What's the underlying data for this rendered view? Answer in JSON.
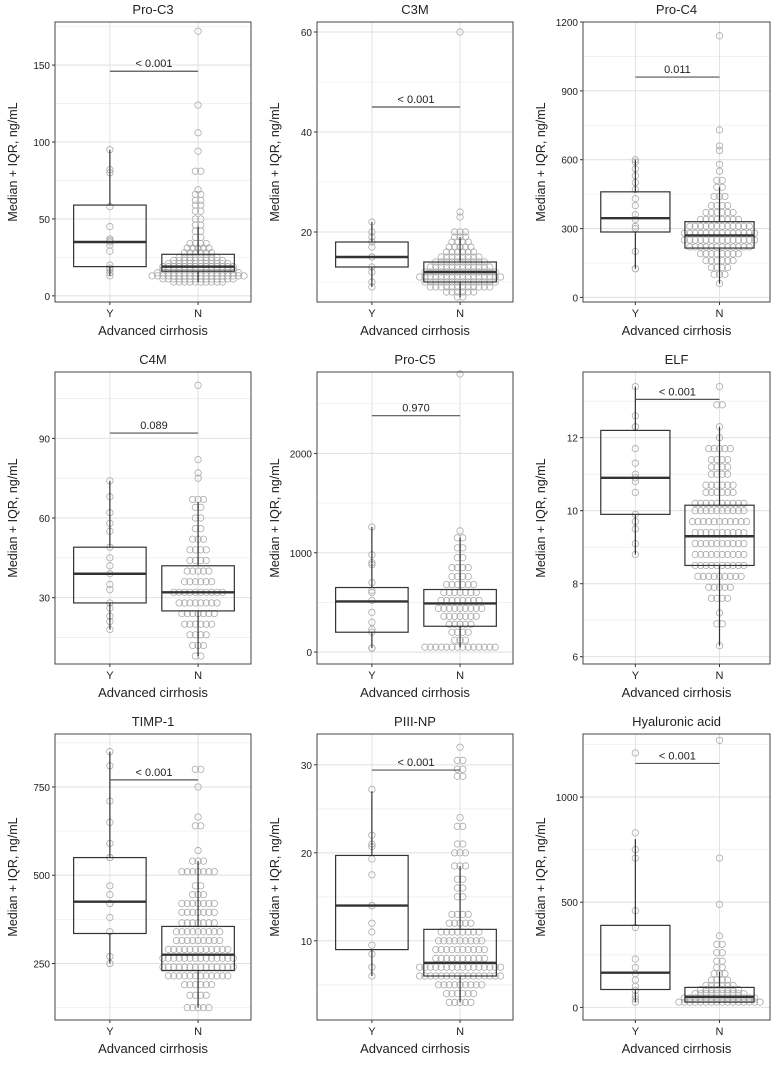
{
  "chart_data": [
    {
      "type": "box",
      "title": "Pro-C3",
      "ylabel": "Median + IQR, ng/mL",
      "xlabel": "Advanced cirrhosis",
      "categories": [
        "Y",
        "N"
      ],
      "ylim": [
        -4,
        178
      ],
      "yticks": [
        0,
        50,
        100,
        150
      ],
      "grid": true,
      "boxes": [
        {
          "group": "Y",
          "min": 13,
          "q1": 19,
          "median": 35,
          "q3": 59,
          "max": 95
        },
        {
          "group": "N",
          "min": 9,
          "q1": 16,
          "median": 19,
          "q3": 27,
          "max": 45
        }
      ],
      "p_value": "< 0.001",
      "p_y": 146,
      "y_points": [
        13,
        15,
        17,
        18,
        20,
        29,
        33,
        35,
        36,
        37,
        45,
        58,
        80,
        82,
        95
      ],
      "n_bins": [
        [
          9,
          10
        ],
        [
          11,
          14
        ],
        [
          13,
          18
        ],
        [
          15,
          16
        ],
        [
          17,
          14
        ],
        [
          19,
          14
        ],
        [
          21,
          12
        ],
        [
          23,
          10
        ],
        [
          25,
          8
        ],
        [
          28,
          6
        ],
        [
          31,
          5
        ],
        [
          34,
          4
        ],
        [
          38,
          2
        ],
        [
          42,
          2
        ],
        [
          46,
          2
        ],
        [
          50,
          2
        ],
        [
          55,
          2
        ],
        [
          59,
          2
        ],
        [
          62,
          2
        ],
        [
          66,
          2
        ],
        [
          69,
          1
        ],
        [
          81,
          2
        ],
        [
          94,
          1
        ],
        [
          106,
          1
        ],
        [
          124,
          1
        ],
        [
          172,
          1
        ]
      ]
    },
    {
      "type": "box",
      "title": "C3M",
      "ylabel": "Median + IQR, ng/mL",
      "xlabel": "Advanced cirrhosis",
      "categories": [
        "Y",
        "N"
      ],
      "ylim": [
        6,
        62
      ],
      "yticks": [
        20,
        40,
        60
      ],
      "grid": true,
      "boxes": [
        {
          "group": "Y",
          "min": 9,
          "q1": 13,
          "median": 15,
          "q3": 18,
          "max": 22
        },
        {
          "group": "N",
          "min": 7,
          "q1": 10,
          "median": 12,
          "q3": 14,
          "max": 19
        }
      ],
      "p_value": "< 0.001",
      "p_y": 45,
      "y_points": [
        9,
        10,
        12,
        13,
        15,
        15,
        17,
        18,
        19,
        20,
        22
      ],
      "n_bins": [
        [
          7,
          2
        ],
        [
          8,
          6
        ],
        [
          9,
          12
        ],
        [
          10,
          14
        ],
        [
          11,
          16
        ],
        [
          12,
          14
        ],
        [
          13,
          12
        ],
        [
          14,
          10
        ],
        [
          15,
          8
        ],
        [
          16,
          6
        ],
        [
          17,
          5
        ],
        [
          18,
          4
        ],
        [
          19,
          3
        ],
        [
          20,
          3
        ],
        [
          23,
          1
        ],
        [
          24,
          1
        ],
        [
          60,
          1
        ]
      ]
    },
    {
      "type": "box",
      "title": "Pro-C4",
      "ylabel": "Median + IQR, ng/mL",
      "xlabel": "Advanced cirrhosis",
      "categories": [
        "Y",
        "N"
      ],
      "ylim": [
        -20,
        1200
      ],
      "yticks": [
        0,
        300,
        600,
        900,
        1200
      ],
      "grid": true,
      "boxes": [
        {
          "group": "Y",
          "min": 125,
          "q1": 285,
          "median": 345,
          "q3": 460,
          "max": 600
        },
        {
          "group": "N",
          "min": 60,
          "q1": 215,
          "median": 270,
          "q3": 330,
          "max": 480
        }
      ],
      "p_value": "0.011",
      "p_y": 960,
      "y_points": [
        125,
        125,
        200,
        300,
        310,
        340,
        360,
        400,
        430,
        470,
        500,
        530,
        560,
        590,
        600
      ],
      "n_bins": [
        [
          60,
          1
        ],
        [
          100,
          3
        ],
        [
          130,
          4
        ],
        [
          160,
          6
        ],
        [
          190,
          8
        ],
        [
          220,
          12
        ],
        [
          250,
          14
        ],
        [
          280,
          14
        ],
        [
          310,
          12
        ],
        [
          340,
          8
        ],
        [
          370,
          6
        ],
        [
          400,
          4
        ],
        [
          440,
          3
        ],
        [
          480,
          2
        ],
        [
          510,
          2
        ],
        [
          550,
          1
        ],
        [
          580,
          1
        ],
        [
          640,
          1
        ],
        [
          660,
          1
        ],
        [
          730,
          1
        ],
        [
          1140,
          1
        ]
      ]
    },
    {
      "type": "box",
      "title": "C4M",
      "ylabel": "Median + IQR, ng/mL",
      "xlabel": "Advanced cirrhosis",
      "categories": [
        "Y",
        "N"
      ],
      "ylim": [
        5,
        115
      ],
      "yticks": [
        30,
        60,
        90
      ],
      "grid": true,
      "boxes": [
        {
          "group": "Y",
          "min": 18,
          "q1": 28,
          "median": 39,
          "q3": 49,
          "max": 74
        },
        {
          "group": "N",
          "min": 8,
          "q1": 25,
          "median": 32,
          "q3": 42,
          "max": 66
        }
      ],
      "p_value": "0.089",
      "p_y": 92,
      "y_points": [
        18,
        21,
        23,
        26,
        28,
        33,
        35,
        39,
        42,
        45,
        49,
        55,
        58,
        62,
        68,
        74
      ],
      "n_bins": [
        [
          8,
          2
        ],
        [
          12,
          3
        ],
        [
          16,
          4
        ],
        [
          20,
          6
        ],
        [
          24,
          7
        ],
        [
          28,
          8
        ],
        [
          32,
          10
        ],
        [
          36,
          6
        ],
        [
          40,
          5
        ],
        [
          44,
          4
        ],
        [
          48,
          4
        ],
        [
          52,
          3
        ],
        [
          56,
          2
        ],
        [
          60,
          2
        ],
        [
          64,
          2
        ],
        [
          67,
          3
        ],
        [
          75,
          1
        ],
        [
          77,
          1
        ],
        [
          82,
          1
        ],
        [
          110,
          1
        ]
      ]
    },
    {
      "type": "box",
      "title": "Pro-C5",
      "ylabel": "Median + IQR, ng/mL",
      "xlabel": "Advanced cirrhosis",
      "categories": [
        "Y",
        "N"
      ],
      "ylim": [
        -120,
        2820
      ],
      "yticks": [
        0,
        1000,
        2000
      ],
      "grid": true,
      "boxes": [
        {
          "group": "Y",
          "min": 40,
          "q1": 200,
          "median": 510,
          "q3": 650,
          "max": 1260
        },
        {
          "group": "N",
          "min": 50,
          "q1": 260,
          "median": 490,
          "q3": 630,
          "max": 1150
        }
      ],
      "p_value": "0.970",
      "p_y": 2380,
      "y_points": [
        40,
        40,
        40,
        200,
        230,
        300,
        400,
        520,
        600,
        620,
        700,
        880,
        900,
        980,
        1260
      ],
      "n_bins": [
        [
          50,
          14
        ],
        [
          120,
          3
        ],
        [
          200,
          4
        ],
        [
          280,
          5
        ],
        [
          360,
          7
        ],
        [
          440,
          9
        ],
        [
          520,
          8
        ],
        [
          600,
          7
        ],
        [
          680,
          6
        ],
        [
          760,
          4
        ],
        [
          850,
          4
        ],
        [
          950,
          2
        ],
        [
          1050,
          2
        ],
        [
          1150,
          2
        ],
        [
          1220,
          1
        ],
        [
          2800,
          1
        ]
      ]
    },
    {
      "type": "box",
      "title": "ELF",
      "ylabel": "Median + IQR, ng/mL",
      "xlabel": "Advanced cirrhosis",
      "categories": [
        "Y",
        "N"
      ],
      "ylim": [
        5.8,
        13.8
      ],
      "yticks": [
        6,
        8,
        10,
        12
      ],
      "grid": true,
      "boxes": [
        {
          "group": "Y",
          "min": 8.8,
          "q1": 9.9,
          "median": 10.9,
          "q3": 12.2,
          "max": 13.4
        },
        {
          "group": "N",
          "min": 6.3,
          "q1": 8.5,
          "median": 9.3,
          "q3": 10.15,
          "max": 12.3
        }
      ],
      "p_value": "< 0.001",
      "p_y": 13.05,
      "y_points": [
        8.8,
        9.1,
        9.5,
        9.7,
        9.9,
        10.5,
        10.8,
        10.9,
        11,
        11.3,
        11.7,
        12.3,
        12.3,
        12.6,
        13.4
      ],
      "n_bins": [
        [
          6.3,
          1
        ],
        [
          6.9,
          2
        ],
        [
          7.2,
          1
        ],
        [
          7.6,
          4
        ],
        [
          7.9,
          5
        ],
        [
          8.2,
          9
        ],
        [
          8.5,
          10
        ],
        [
          8.8,
          10
        ],
        [
          9.1,
          10
        ],
        [
          9.4,
          10
        ],
        [
          9.7,
          11
        ],
        [
          10,
          10
        ],
        [
          10.2,
          10
        ],
        [
          10.5,
          6
        ],
        [
          10.7,
          6
        ],
        [
          11,
          4
        ],
        [
          11.2,
          4
        ],
        [
          11.4,
          4
        ],
        [
          11.7,
          5
        ],
        [
          12,
          1
        ],
        [
          12.3,
          1
        ],
        [
          12.9,
          2
        ],
        [
          13.4,
          1
        ]
      ]
    },
    {
      "type": "box",
      "title": "TIMP-1",
      "ylabel": "Median + IQR, ng/mL",
      "xlabel": "Advanced cirrhosis",
      "categories": [
        "Y",
        "N"
      ],
      "ylim": [
        90,
        900
      ],
      "yticks": [
        250,
        500,
        750
      ],
      "grid": true,
      "boxes": [
        {
          "group": "Y",
          "min": 250,
          "q1": 335,
          "median": 425,
          "q3": 550,
          "max": 850
        },
        {
          "group": "N",
          "min": 125,
          "q1": 230,
          "median": 275,
          "q3": 355,
          "max": 540
        }
      ],
      "p_value": "< 0.001",
      "p_y": 770,
      "y_points": [
        250,
        250,
        270,
        340,
        380,
        420,
        420,
        445,
        470,
        550,
        550,
        590,
        650,
        710,
        810,
        850
      ],
      "n_bins": [
        [
          125,
          5
        ],
        [
          160,
          4
        ],
        [
          190,
          6
        ],
        [
          215,
          12
        ],
        [
          240,
          14
        ],
        [
          265,
          14
        ],
        [
          290,
          12
        ],
        [
          315,
          9
        ],
        [
          340,
          9
        ],
        [
          365,
          7
        ],
        [
          395,
          7
        ],
        [
          420,
          7
        ],
        [
          445,
          3
        ],
        [
          470,
          2
        ],
        [
          510,
          7
        ],
        [
          540,
          3
        ],
        [
          570,
          1
        ],
        [
          640,
          2
        ],
        [
          665,
          1
        ],
        [
          750,
          1
        ],
        [
          800,
          2
        ]
      ]
    },
    {
      "type": "box",
      "title": "PIII-NP",
      "ylabel": "Median + IQR, ng/mL",
      "xlabel": "Advanced cirrhosis",
      "categories": [
        "Y",
        "N"
      ],
      "ylim": [
        1,
        33.5
      ],
      "yticks": [
        10,
        20,
        30
      ],
      "grid": true,
      "boxes": [
        {
          "group": "Y",
          "min": 6,
          "q1": 9,
          "median": 14,
          "q3": 19.7,
          "max": 27
        },
        {
          "group": "N",
          "min": 3,
          "q1": 6,
          "median": 7.5,
          "q3": 11.3,
          "max": 18.5
        }
      ],
      "p_value": "< 0.001",
      "p_y": 29.4,
      "y_points": [
        6,
        7,
        8.5,
        9.5,
        11,
        12,
        14,
        14,
        17.5,
        19.3,
        20.7,
        21,
        22,
        27.2
      ],
      "n_bins": [
        [
          3,
          5
        ],
        [
          4,
          6
        ],
        [
          5,
          9
        ],
        [
          6,
          16
        ],
        [
          7,
          16
        ],
        [
          8,
          10
        ],
        [
          9,
          10
        ],
        [
          10,
          9
        ],
        [
          11,
          8
        ],
        [
          12,
          5
        ],
        [
          13,
          4
        ],
        [
          15,
          2
        ],
        [
          16,
          2
        ],
        [
          17,
          2
        ],
        [
          18.5,
          3
        ],
        [
          20,
          3
        ],
        [
          21,
          2
        ],
        [
          23,
          2
        ],
        [
          24,
          1
        ],
        [
          28.7,
          2
        ],
        [
          29.5,
          2
        ],
        [
          30.5,
          2
        ],
        [
          32,
          1
        ]
      ]
    },
    {
      "type": "box",
      "title": "Hyaluronic acid",
      "ylabel": "Median + IQR, ng/mL",
      "xlabel": "Advanced cirrhosis",
      "categories": [
        "Y",
        "N"
      ],
      "ylim": [
        -60,
        1300
      ],
      "yticks": [
        0,
        500,
        1000
      ],
      "grid": true,
      "boxes": [
        {
          "group": "Y",
          "min": 25,
          "q1": 85,
          "median": 165,
          "q3": 390,
          "max": 800
        },
        {
          "group": "N",
          "min": 20,
          "q1": 25,
          "median": 50,
          "q3": 95,
          "max": 170
        }
      ],
      "p_value": "< 0.001",
      "p_y": 1160,
      "y_points": [
        25,
        40,
        55,
        80,
        100,
        130,
        160,
        190,
        230,
        380,
        460,
        710,
        750,
        830,
        1210
      ],
      "n_bins": [
        [
          25,
          16
        ],
        [
          45,
          14
        ],
        [
          65,
          10
        ],
        [
          85,
          8
        ],
        [
          105,
          6
        ],
        [
          130,
          4
        ],
        [
          160,
          3
        ],
        [
          190,
          2
        ],
        [
          220,
          2
        ],
        [
          260,
          2
        ],
        [
          300,
          2
        ],
        [
          340,
          1
        ],
        [
          490,
          1
        ],
        [
          710,
          1
        ],
        [
          1270,
          1
        ]
      ]
    }
  ]
}
